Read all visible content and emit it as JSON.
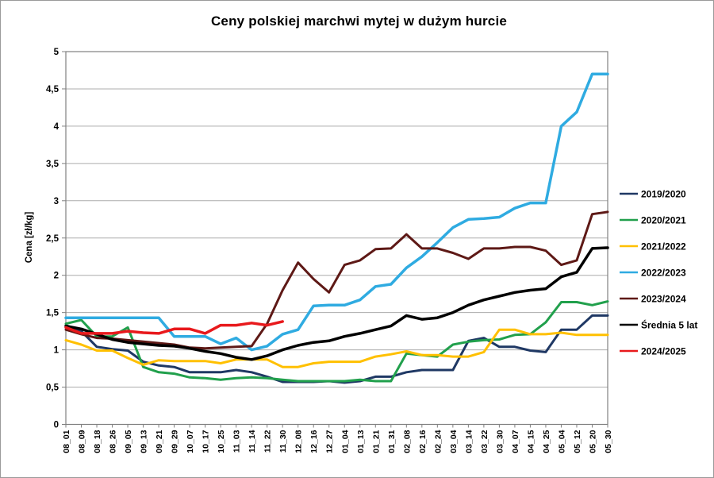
{
  "title": "Ceny polskiej marchwi mytej w dużym hurcie",
  "chart_data": {
    "type": "line",
    "title": "Ceny polskiej marchwi mytej w dużym hurcie",
    "xlabel": "",
    "ylabel": "Cena [zł/kg]",
    "ylim": [
      0,
      5
    ],
    "ytick_step": 0.5,
    "ytick_labels": [
      "0",
      "0,5",
      "1",
      "1,5",
      "2",
      "2,5",
      "3",
      "3,5",
      "4",
      "4,5",
      "5"
    ],
    "grid": true,
    "legend_position": "right",
    "categories": [
      "08_01",
      "08_09",
      "08_18",
      "08_26",
      "09_05",
      "09_13",
      "09_21",
      "09_29",
      "10_07",
      "10_17",
      "10_25",
      "11_03",
      "11_14",
      "11_22",
      "11_30",
      "12_08",
      "12_16",
      "12_27",
      "01_04",
      "01_13",
      "01_21",
      "01_31",
      "02_08",
      "02_16",
      "02_24",
      "03_04",
      "03_14",
      "03_22",
      "03_30",
      "04_07",
      "04_15",
      "04_25",
      "05_04",
      "05_12",
      "05_20",
      "05_30"
    ],
    "series": [
      {
        "name": "2019/2020",
        "color": "#1F3864",
        "width": 3,
        "values": [
          1.33,
          1.25,
          1.04,
          1.01,
          0.99,
          0.84,
          0.79,
          0.77,
          0.7,
          0.7,
          0.7,
          0.73,
          0.7,
          0.64,
          0.57,
          0.57,
          0.57,
          0.58,
          0.56,
          0.58,
          0.64,
          0.64,
          0.7,
          0.73,
          0.73,
          0.73,
          1.12,
          1.16,
          1.04,
          1.04,
          0.99,
          0.97,
          1.27,
          1.27,
          1.46,
          1.46
        ]
      },
      {
        "name": "2020/2021",
        "color": "#21A04C",
        "width": 3,
        "values": [
          1.35,
          1.4,
          1.18,
          1.18,
          1.3,
          0.77,
          0.7,
          0.68,
          0.63,
          0.62,
          0.6,
          0.62,
          0.63,
          0.62,
          0.6,
          0.58,
          0.58,
          0.58,
          0.58,
          0.6,
          0.58,
          0.58,
          0.95,
          0.93,
          0.91,
          1.07,
          1.11,
          1.13,
          1.14,
          1.2,
          1.21,
          1.37,
          1.64,
          1.64,
          1.6,
          1.65
        ]
      },
      {
        "name": "2021/2022",
        "color": "#FFC000",
        "width": 3,
        "values": [
          1.13,
          1.07,
          0.99,
          0.99,
          0.89,
          0.8,
          0.86,
          0.85,
          0.85,
          0.85,
          0.82,
          0.87,
          0.87,
          0.87,
          0.77,
          0.77,
          0.82,
          0.84,
          0.84,
          0.84,
          0.91,
          0.94,
          0.98,
          0.93,
          0.93,
          0.91,
          0.91,
          0.97,
          1.27,
          1.27,
          1.21,
          1.21,
          1.23,
          1.2,
          1.2,
          1.2
        ]
      },
      {
        "name": "2022/2023",
        "color": "#2FABE1",
        "width": 3.5,
        "values": [
          1.43,
          1.43,
          1.43,
          1.43,
          1.43,
          1.43,
          1.43,
          1.18,
          1.18,
          1.18,
          1.08,
          1.16,
          1.0,
          1.05,
          1.21,
          1.27,
          1.59,
          1.6,
          1.6,
          1.67,
          1.85,
          1.88,
          2.1,
          2.25,
          2.44,
          2.64,
          2.75,
          2.76,
          2.78,
          2.9,
          2.97,
          2.97,
          4.0,
          4.19,
          4.7,
          4.7
        ]
      },
      {
        "name": "2023/2024",
        "color": "#5E1916",
        "width": 3,
        "values": [
          1.27,
          1.21,
          1.16,
          1.15,
          1.13,
          1.11,
          1.09,
          1.07,
          1.03,
          1.02,
          1.03,
          1.04,
          1.05,
          1.35,
          1.8,
          2.17,
          1.95,
          1.77,
          2.14,
          2.2,
          2.35,
          2.36,
          2.55,
          2.36,
          2.36,
          2.3,
          2.22,
          2.36,
          2.36,
          2.38,
          2.38,
          2.33,
          2.14,
          2.2,
          2.82,
          2.85
        ]
      },
      {
        "name": "Średnia 5 lat",
        "color": "#000000",
        "width": 3.5,
        "values": [
          1.32,
          1.28,
          1.21,
          1.14,
          1.1,
          1.08,
          1.06,
          1.05,
          1.02,
          0.98,
          0.95,
          0.9,
          0.87,
          0.92,
          1.0,
          1.06,
          1.1,
          1.12,
          1.18,
          1.22,
          1.27,
          1.32,
          1.46,
          1.41,
          1.43,
          1.5,
          1.6,
          1.67,
          1.72,
          1.77,
          1.8,
          1.82,
          1.98,
          2.04,
          2.36,
          2.37
        ]
      },
      {
        "name": "2024/2025",
        "color": "#E8191C",
        "width": 3.5,
        "values": [
          1.3,
          1.22,
          1.22,
          1.22,
          1.25,
          1.23,
          1.22,
          1.28,
          1.28,
          1.22,
          1.33,
          1.33,
          1.36,
          1.33,
          1.38,
          null,
          null,
          null,
          null,
          null,
          null,
          null,
          null,
          null,
          null,
          null,
          null,
          null,
          null,
          null,
          null,
          null,
          null,
          null,
          null,
          null
        ]
      }
    ]
  }
}
